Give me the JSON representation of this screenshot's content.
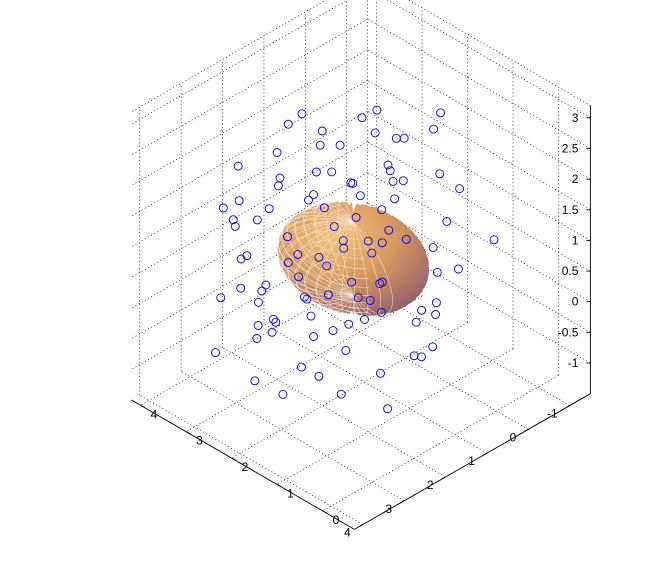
{
  "chart_data": {
    "type": "scatter",
    "projection": "3d",
    "title": "",
    "xlabel": "",
    "ylabel": "",
    "zlabel": "",
    "xlim": [
      -1.5,
      4.2
    ],
    "ylim": [
      -0.7,
      4.2
    ],
    "zlim": [
      -1.5,
      3.2
    ],
    "x_ticks": [
      "-1",
      "0",
      "1",
      "2",
      "3",
      "4"
    ],
    "y_ticks": [
      "0",
      "1",
      "2",
      "3",
      "4"
    ],
    "z_ticks": [
      "-1",
      "-0.5",
      "0",
      "0.5",
      "1",
      "1.5",
      "2",
      "2.5",
      "3"
    ],
    "grid": true,
    "marker": "o",
    "marker_color": "#0000ff",
    "surface": {
      "type": "ellipsoid",
      "center": [
        1.7,
        1.6,
        0.95
      ],
      "radii": [
        1.15,
        1.3,
        0.6
      ],
      "color": "#d99a55",
      "mesh_color": "#f2efe6"
    },
    "series": [
      {
        "points": [
          [
            -0.9,
            2.2,
            1.8
          ],
          [
            1.4,
            3.3,
            2.3
          ],
          [
            2.6,
            0.2,
            1.5
          ],
          [
            0.5,
            2.9,
            0.1
          ],
          [
            3.1,
            1.2,
            0.4
          ],
          [
            2.0,
            1.8,
            2.4
          ],
          [
            0.1,
            1.0,
            1.2
          ],
          [
            1.9,
            3.5,
            -0.5
          ],
          [
            3.6,
            0.8,
            1.1
          ],
          [
            -0.3,
            1.5,
            2.6
          ],
          [
            2.3,
            2.7,
            1.9
          ],
          [
            1.1,
            0.4,
            -0.2
          ],
          [
            3.0,
            2.2,
            0.0
          ],
          [
            0.8,
            1.9,
            2.9
          ],
          [
            1.5,
            1.0,
            1.6
          ],
          [
            2.9,
            3.1,
            1.3
          ],
          [
            -0.6,
            0.6,
            0.8
          ],
          [
            1.8,
            -0.3,
            0.9
          ],
          [
            3.4,
            1.6,
            -0.6
          ],
          [
            0.3,
            3.6,
            1.4
          ],
          [
            2.4,
            0.9,
            2.2
          ],
          [
            1.2,
            2.5,
            -0.8
          ],
          [
            3.8,
            2.6,
            0.7
          ],
          [
            0.0,
            2.2,
            2.0
          ],
          [
            2.1,
            1.4,
            -0.3
          ],
          [
            1.6,
            3.8,
            0.6
          ],
          [
            2.8,
            0.0,
            0.2
          ],
          [
            0.6,
            0.7,
            2.3
          ],
          [
            3.3,
            3.0,
            1.8
          ],
          [
            1.0,
            1.6,
            0.3
          ],
          [
            2.6,
            2.0,
            1.2
          ],
          [
            -0.2,
            3.0,
            -0.1
          ],
          [
            1.7,
            0.5,
            2.7
          ],
          [
            3.0,
            1.0,
            1.6
          ],
          [
            0.9,
            3.2,
            1.0
          ],
          [
            2.2,
            2.9,
            -0.4
          ],
          [
            1.3,
            1.2,
            2.5
          ],
          [
            3.7,
            1.9,
            0.3
          ],
          [
            0.4,
            1.4,
            -0.5
          ],
          [
            2.5,
            3.4,
            2.0
          ],
          [
            1.9,
            0.8,
            0.5
          ],
          [
            -0.4,
            2.7,
            1.1
          ],
          [
            2.7,
            1.5,
            2.8
          ],
          [
            1.1,
            2.2,
            1.7
          ],
          [
            3.2,
            0.5,
            -0.2
          ],
          [
            0.7,
            0.2,
            1.0
          ],
          [
            2.0,
            2.4,
            0.1
          ],
          [
            1.4,
            3.0,
            2.6
          ],
          [
            3.5,
            2.3,
            1.4
          ],
          [
            0.2,
            1.8,
            0.6
          ],
          [
            2.3,
            0.3,
            -0.7
          ],
          [
            1.6,
            1.7,
            2.1
          ],
          [
            2.9,
            2.6,
            -0.1
          ],
          [
            0.5,
            2.5,
            2.4
          ],
          [
            3.9,
            1.3,
            0.9
          ],
          [
            1.0,
            0.9,
            -0.6
          ],
          [
            2.4,
            3.6,
            1.0
          ],
          [
            1.8,
            1.1,
            1.3
          ],
          [
            -0.1,
            0.9,
            1.7
          ],
          [
            3.1,
            2.8,
            0.5
          ],
          [
            1.2,
            3.5,
            0.3
          ],
          [
            2.6,
            1.2,
            2.0
          ],
          [
            0.8,
            1.3,
            2.7
          ],
          [
            2.1,
            0.6,
            1.8
          ],
          [
            3.4,
            1.9,
            2.3
          ],
          [
            1.5,
            2.8,
            -0.3
          ],
          [
            0.3,
            2.0,
            1.5
          ],
          [
            2.8,
            0.7,
            0.7
          ],
          [
            1.9,
            2.1,
            2.9
          ],
          [
            3.6,
            2.9,
            -0.4
          ],
          [
            0.9,
            0.5,
            0.4
          ],
          [
            2.2,
            1.9,
            -0.9
          ],
          [
            1.3,
            2.6,
            1.2
          ],
          [
            2.7,
            3.2,
            1.6
          ],
          [
            0.1,
            2.9,
            0.8
          ],
          [
            3.0,
            1.4,
            2.5
          ],
          [
            1.7,
            0.1,
            0.0
          ],
          [
            2.5,
            2.3,
            0.9
          ],
          [
            0.6,
            1.1,
            -0.1
          ],
          [
            3.3,
            0.9,
            1.9
          ],
          [
            1.4,
            1.5,
            0.2
          ],
          [
            2.0,
            3.0,
            2.2
          ],
          [
            0.4,
            2.3,
            2.2
          ],
          [
            3.8,
            1.7,
            1.2
          ],
          [
            1.1,
            1.9,
            -0.4
          ],
          [
            2.9,
            0.4,
            1.3
          ],
          [
            1.6,
            3.3,
            1.5
          ],
          [
            2.3,
            1.6,
            0.6
          ],
          [
            0.7,
            2.8,
            1.9
          ],
          [
            3.2,
            2.4,
            -0.8
          ],
          [
            1.8,
            0.6,
            2.4
          ],
          [
            2.6,
            2.7,
            0.4
          ],
          [
            0.0,
            1.3,
            0.2
          ],
          [
            3.5,
            1.1,
            0.1
          ],
          [
            1.2,
            0.3,
            1.5
          ],
          [
            2.1,
            3.7,
            0.2
          ],
          [
            1.5,
            2.0,
            1.0
          ],
          [
            2.8,
            1.8,
            1.0
          ],
          [
            0.9,
            1.7,
            1.4
          ],
          [
            2.4,
            1.0,
            1.1
          ]
        ]
      }
    ]
  }
}
